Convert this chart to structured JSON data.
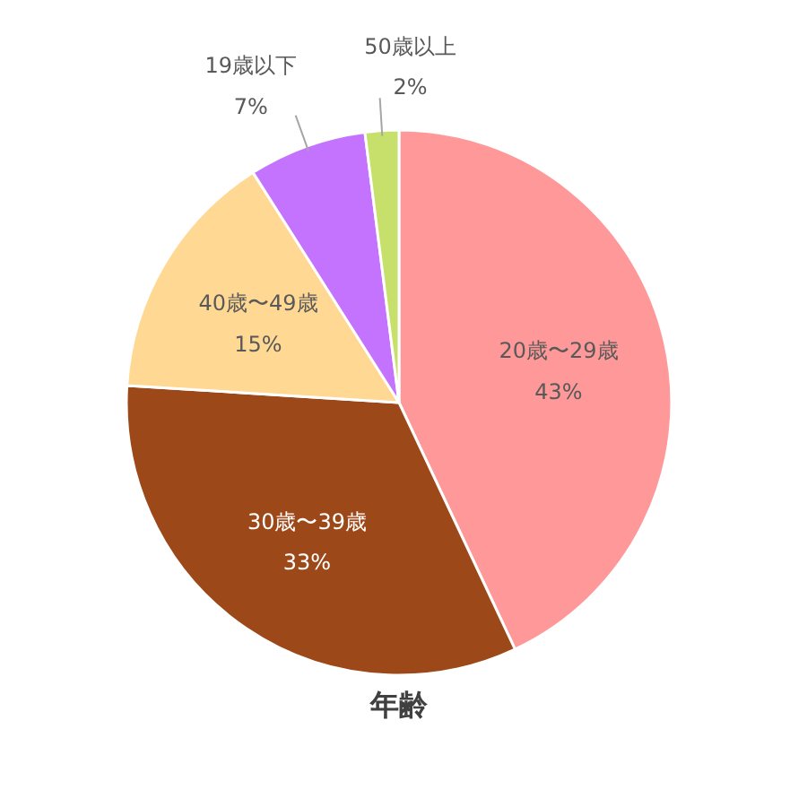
{
  "chart_data": {
    "type": "pie",
    "title": "年齢",
    "categories": [
      "20歳〜29歳",
      "30歳〜39歳",
      "40歳〜49歳",
      "19歳以下",
      "50歳以上"
    ],
    "values": [
      43,
      33,
      15,
      7,
      2
    ],
    "value_labels": [
      "43%",
      "33%",
      "15%",
      "7%",
      "2%"
    ],
    "colors": [
      "#ff9999",
      "#9c4818",
      "#ffd994",
      "#c473ff",
      "#c6e06b"
    ]
  }
}
